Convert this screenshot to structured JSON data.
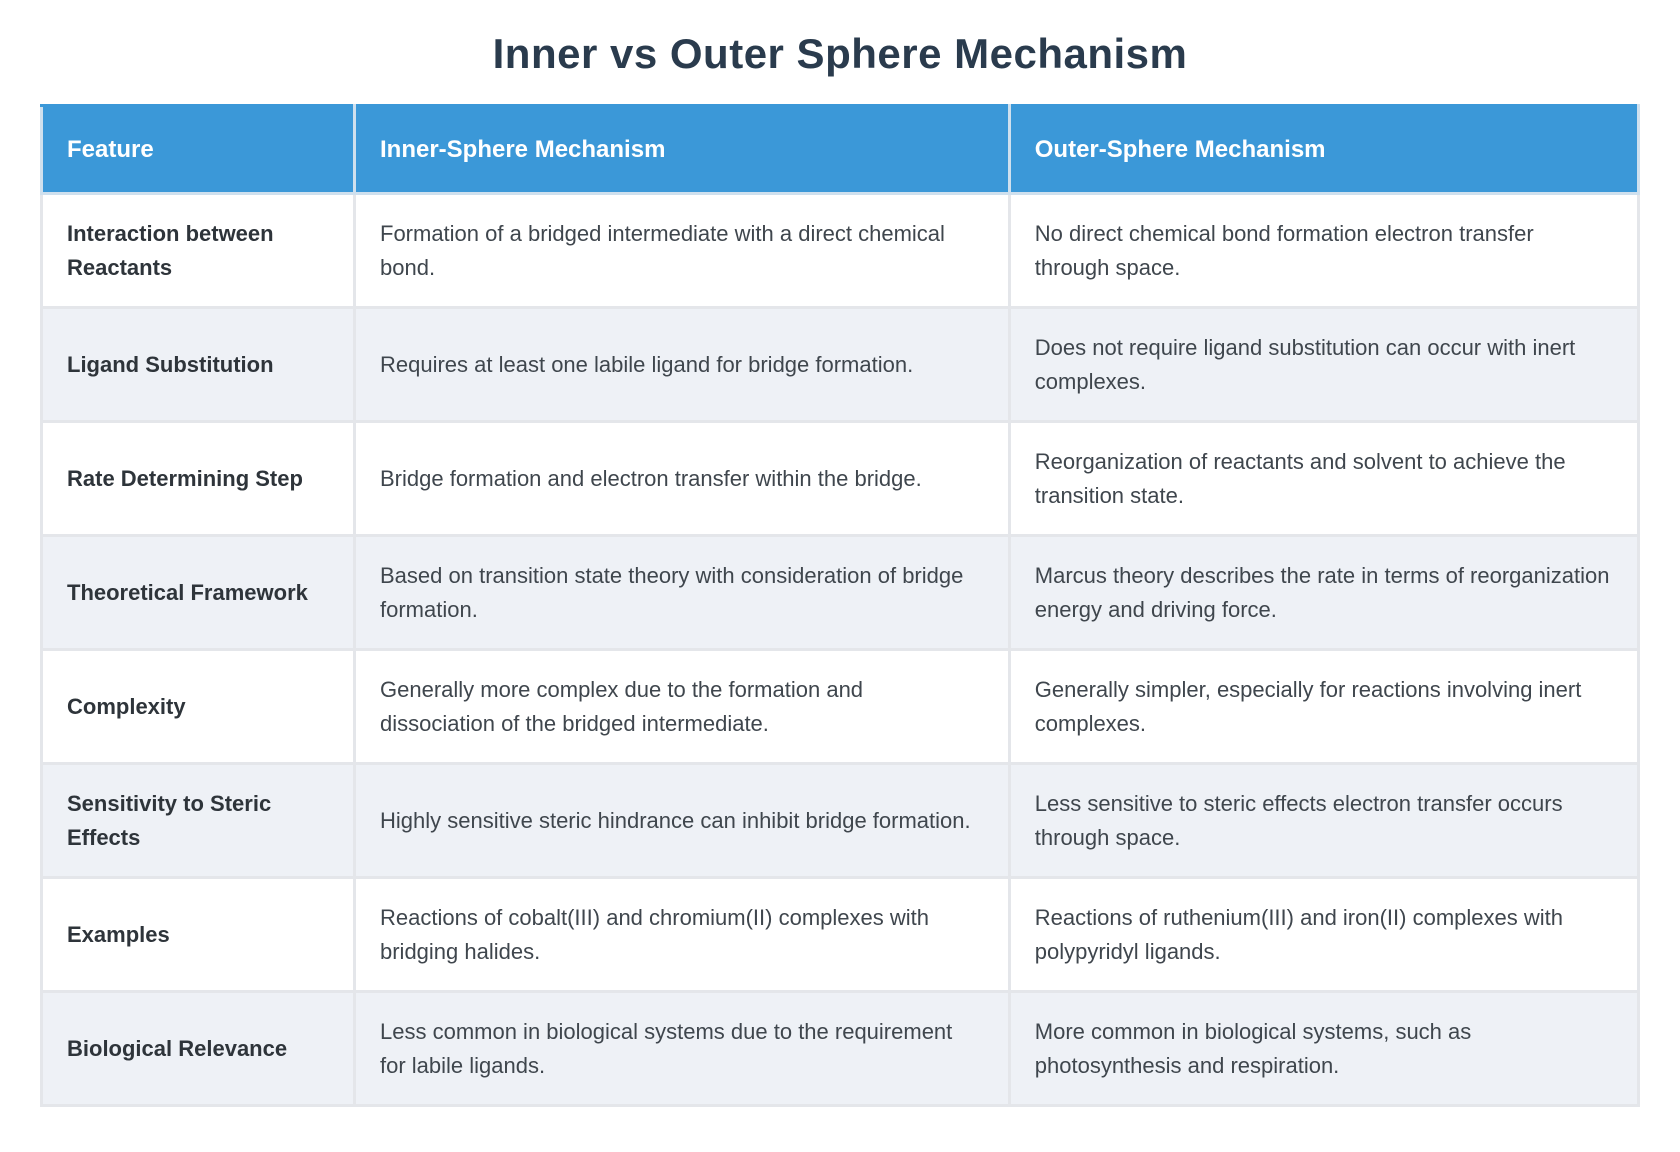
{
  "page": {
    "title": "Inner vs Outer Sphere Mechanism"
  },
  "colors": {
    "header_bg": "#3b98d8",
    "header_text": "#ffffff",
    "title_text": "#2a3b4d",
    "row_bg": "#ffffff",
    "row_alt_bg": "#eef1f6",
    "border": "#e4e6ea",
    "body_text": "#3f464d"
  },
  "table": {
    "columns": [
      "Feature",
      "Inner-Sphere Mechanism",
      "Outer-Sphere Mechanism"
    ],
    "rows": [
      {
        "feature": "Interaction between Reactants",
        "inner": "Formation of a bridged intermediate with a direct chemical bond.",
        "outer": "No direct chemical bond formation electron transfer through space."
      },
      {
        "feature": "Ligand Substitution",
        "inner": "Requires at least one labile ligand for bridge formation.",
        "outer": "Does not require ligand substitution can occur with inert complexes."
      },
      {
        "feature": "Rate Determining Step",
        "inner": "Bridge formation and electron transfer within the bridge.",
        "outer": "Reorganization of reactants and solvent to achieve the transition state."
      },
      {
        "feature": "Theoretical Framework",
        "inner": "Based on transition state theory with consideration of bridge formation.",
        "outer": "Marcus theory describes the rate in terms of reorganization energy and driving force."
      },
      {
        "feature": "Complexity",
        "inner": "Generally more complex due to the formation and dissociation of the bridged intermediate.",
        "outer": "Generally simpler, especially for reactions involving inert complexes."
      },
      {
        "feature": "Sensitivity to Steric Effects",
        "inner": "Highly sensitive steric hindrance can inhibit bridge formation.",
        "outer": "Less sensitive to steric effects electron transfer occurs through space."
      },
      {
        "feature": "Examples",
        "inner": "Reactions of cobalt(III) and chromium(II) complexes with bridging halides.",
        "outer": "Reactions of ruthenium(III) and iron(II) complexes with polypyridyl ligands."
      },
      {
        "feature": "Biological Relevance",
        "inner": "Less common in biological systems due to the requirement for labile ligands.",
        "outer": "More common in biological systems, such as photosynthesis and respiration."
      }
    ]
  }
}
